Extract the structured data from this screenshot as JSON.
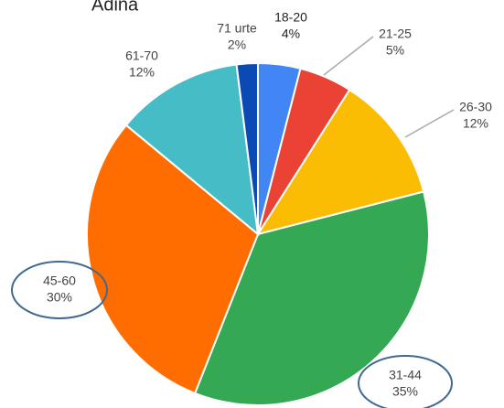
{
  "chart_data": {
    "type": "pie",
    "title": "Adina",
    "categories": [
      "18-20",
      "21-25",
      "26-30",
      "31-44",
      "45-60",
      "61-70",
      "71 urte"
    ],
    "values": [
      4,
      5,
      12,
      35,
      30,
      12,
      2
    ],
    "value_labels": [
      "4%",
      "5%",
      "12%",
      "35%",
      "30%",
      "12%",
      "2%"
    ],
    "colors": [
      "#4285f4",
      "#ea4335",
      "#fbbc04",
      "#34a853",
      "#ff6d01",
      "#46bdc6",
      "#0b49b5"
    ]
  }
}
